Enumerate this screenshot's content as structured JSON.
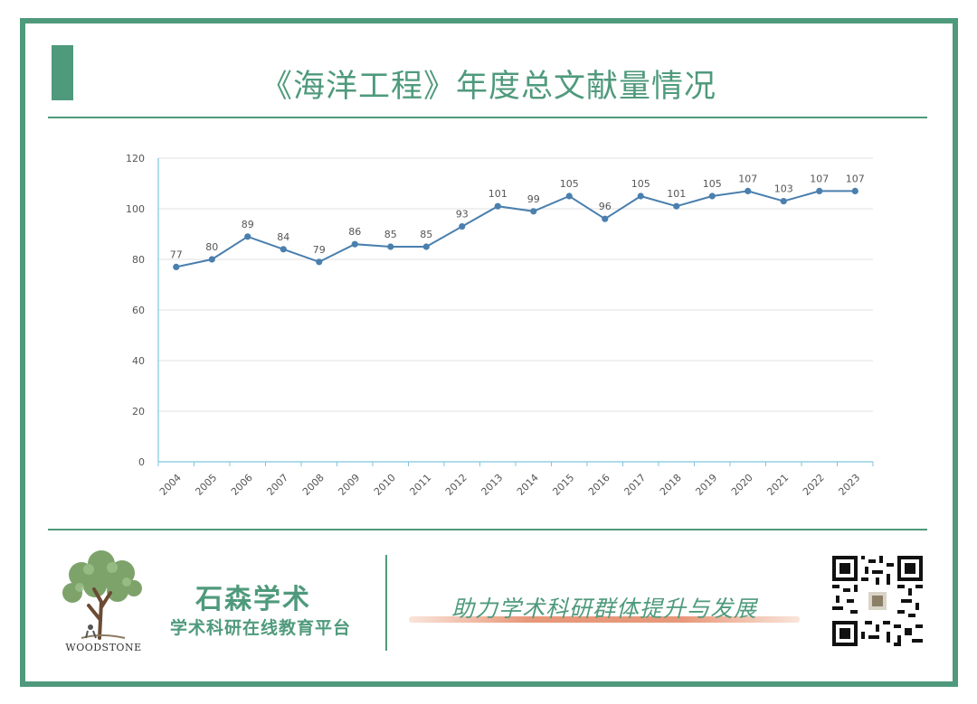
{
  "header": {
    "title": "《海洋工程》年度总文献量情况"
  },
  "chart_data": {
    "type": "line",
    "title": "《海洋工程》年度总文献量情况",
    "xlabel": "",
    "ylabel": "",
    "categories": [
      "2004",
      "2005",
      "2006",
      "2007",
      "2008",
      "2009",
      "2010",
      "2011",
      "2012",
      "2013",
      "2014",
      "2015",
      "2016",
      "2017",
      "2018",
      "2019",
      "2020",
      "2021",
      "2022",
      "2023"
    ],
    "series": [
      {
        "values": [
          77,
          80,
          89,
          84,
          79,
          86,
          85,
          85,
          93,
          101,
          99,
          105,
          96,
          105,
          101,
          105,
          107,
          103,
          107,
          107
        ]
      }
    ],
    "ylim": [
      0,
      120
    ],
    "yticks": [
      0,
      20,
      40,
      60,
      80,
      100,
      120
    ],
    "grid": true,
    "colors": {
      "line": "#4a7fae",
      "grid": "#e2e2e2",
      "axis": "#7fc6dc"
    }
  },
  "footer": {
    "brand_name": "石森学术",
    "brand_sub": "学术科研在线教育平台",
    "logo_text": "WOODSTONE",
    "slogan": "助力学术科研群体提升与发展",
    "logo_icon": "tree-logo-icon",
    "qr_icon": "qr-code-icon"
  },
  "theme": {
    "accent": "#4f9a7c",
    "slogan_underline": "#e8987a"
  }
}
